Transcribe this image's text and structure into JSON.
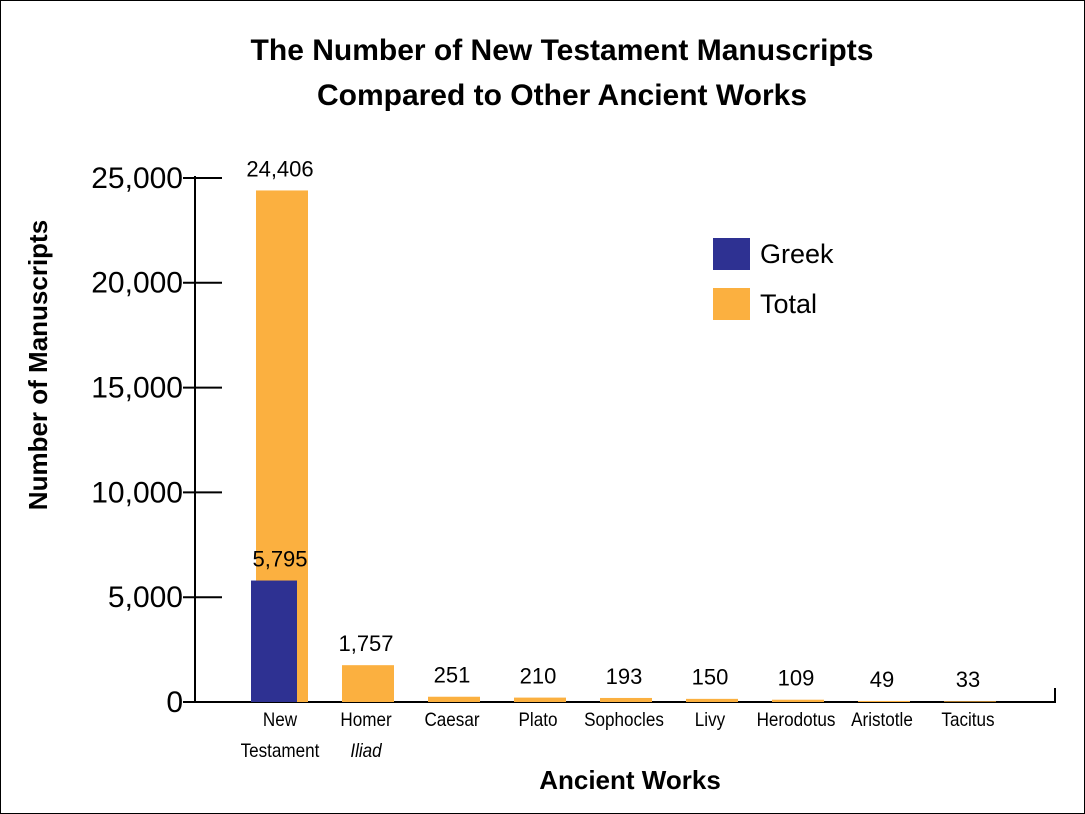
{
  "chart_data": {
    "type": "bar",
    "title": [
      "The Number of New Testament Manuscripts",
      "Compared to Other Ancient Works"
    ],
    "xlabel": "Ancient Works",
    "ylabel": "Number of Manuscripts",
    "categories": [
      [
        "New",
        "Testament"
      ],
      [
        "Homer",
        "Iliad"
      ],
      [
        "Caesar"
      ],
      [
        "Plato"
      ],
      [
        "Sophocles"
      ],
      [
        "Livy"
      ],
      [
        "Herodotus"
      ],
      [
        "Aristotle"
      ],
      [
        "Tacitus"
      ]
    ],
    "series": [
      {
        "name": "Total",
        "color": "#fbb040",
        "values": [
          24406,
          1757,
          251,
          210,
          193,
          150,
          109,
          49,
          33
        ],
        "value_labels": [
          "24,406",
          "1,757",
          "251",
          "210",
          "193",
          "150",
          "109",
          "49",
          "33"
        ]
      },
      {
        "name": "Greek",
        "color": "#2e3192",
        "values": [
          5795,
          null,
          null,
          null,
          null,
          null,
          null,
          null,
          null
        ],
        "value_labels": [
          "5,795",
          null,
          null,
          null,
          null,
          null,
          null,
          null,
          null
        ]
      }
    ],
    "legend_order": [
      "Greek",
      "Total"
    ],
    "legend": "upper right",
    "ylim": [
      0,
      25000
    ],
    "yticks": [
      0,
      {
        "value": 5000,
        "label": "5,000"
      },
      {
        "value": 10000,
        "label": "10,000"
      },
      {
        "value": 15000,
        "label": "15,000"
      },
      {
        "value": 20000,
        "label": "20,000"
      },
      {
        "value": 25000,
        "label": "25,000"
      }
    ]
  }
}
